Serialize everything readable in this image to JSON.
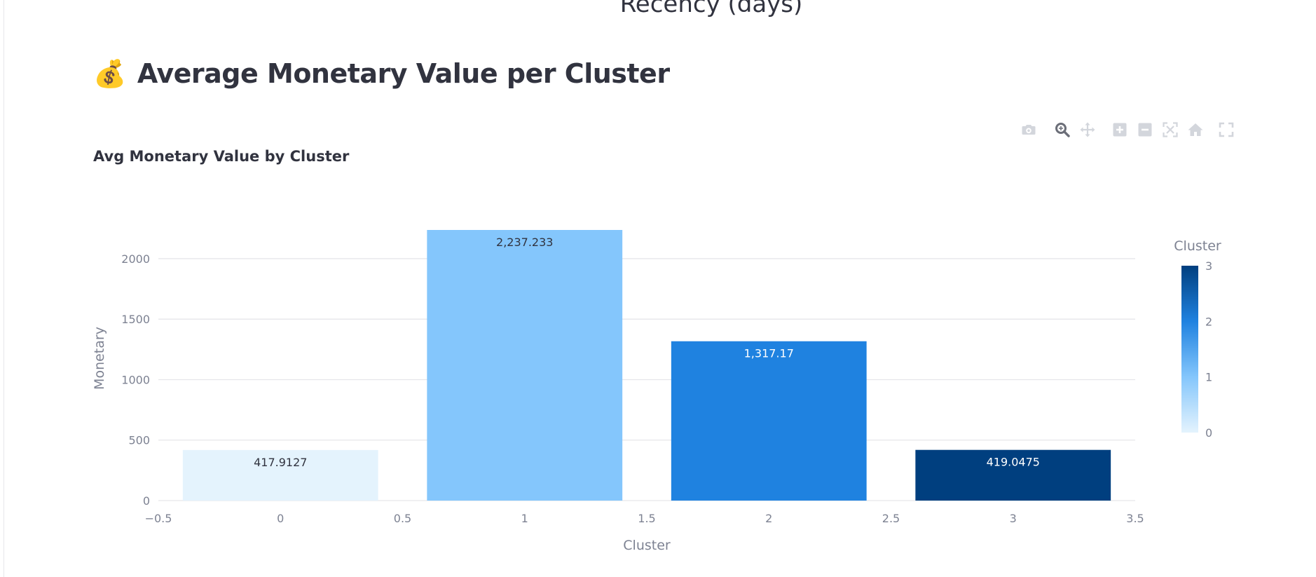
{
  "previous_chart": {
    "x_axis_title": "Recency (days)"
  },
  "section": {
    "emoji": "💰",
    "title": "Average Monetary Value per Cluster"
  },
  "chart_data": {
    "type": "bar",
    "title": "Avg Monetary Value by Cluster",
    "xlabel": "Cluster",
    "ylabel": "Monetary",
    "x": [
      0,
      1,
      2,
      3
    ],
    "values": [
      417.9127,
      2237.233,
      1317.17,
      419.0475
    ],
    "data_labels": [
      "417.9127",
      "2,237.233",
      "1,317.17",
      "419.0475"
    ],
    "bar_colors": [
      "#e4f3fd",
      "#84c6fc",
      "#1f82e0",
      "#003f7f"
    ],
    "label_colors": [
      "#31333f",
      "#31333f",
      "#ffffff",
      "#ffffff"
    ],
    "xlim": [
      -0.5,
      3.5
    ],
    "ylim": [
      0,
      2237.233
    ],
    "x_ticks": [
      -0.5,
      0,
      0.5,
      1,
      1.5,
      2,
      2.5,
      3,
      3.5
    ],
    "x_tick_labels": [
      "−0.5",
      "0",
      "0.5",
      "1",
      "1.5",
      "2",
      "2.5",
      "3",
      "3.5"
    ],
    "y_ticks": [
      0,
      500,
      1000,
      1500,
      2000
    ],
    "y_tick_labels": [
      "0",
      "500",
      "1000",
      "1500",
      "2000"
    ],
    "grid": true,
    "colorbar": {
      "title": "Cluster",
      "range": [
        0,
        3
      ],
      "ticks": [
        0,
        1,
        2,
        3
      ],
      "tick_labels": [
        "0",
        "1",
        "2",
        "3"
      ],
      "gradient": [
        "#e4f3fd",
        "#84c6fc",
        "#1f82e0",
        "#003f7f"
      ],
      "placement": "right"
    }
  },
  "modebar": {
    "buttons": [
      {
        "icon": "camera-icon",
        "title": "Download plot as a png"
      },
      {
        "icon": "zoom-icon",
        "title": "Zoom"
      },
      {
        "icon": "pan-icon",
        "title": "Pan"
      },
      {
        "icon": "zoom-in-icon",
        "title": "Zoom in"
      },
      {
        "icon": "zoom-out-icon",
        "title": "Zoom out"
      },
      {
        "icon": "autoscale-icon",
        "title": "Autoscale"
      },
      {
        "icon": "reset-axes-icon",
        "title": "Reset axes"
      },
      {
        "icon": "fullscreen-icon",
        "title": "View fullscreen"
      }
    ]
  }
}
